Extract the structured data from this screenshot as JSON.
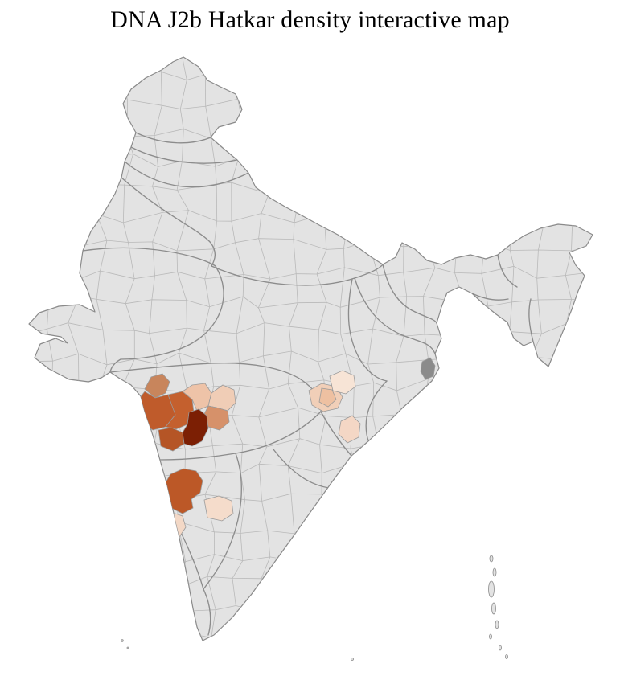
{
  "title": "DNA J2b Hatkar density interactive map",
  "map": {
    "land_fill": "#e3e3e3",
    "sea_background": "#ffffff",
    "district_border_color": "#b9b9b9",
    "state_border_color": "#8c8c8c",
    "outline_color": "#8a8a8a",
    "density_color_scale": [
      "#f7e4d6",
      "#f4d7c5",
      "#eec3a8",
      "#d6916a",
      "#c4602e",
      "#7c1f04"
    ],
    "districts": [
      {
        "id": "d1",
        "color": "#c8855c"
      },
      {
        "id": "d2",
        "color": "#bf5b2b"
      },
      {
        "id": "d3",
        "color": "#c4602e"
      },
      {
        "id": "d4",
        "color": "#b55526"
      },
      {
        "id": "d5",
        "color": "#eec3a8"
      },
      {
        "id": "d6",
        "color": "#f0cdb6"
      },
      {
        "id": "d7",
        "color": "#d6916a"
      },
      {
        "id": "d8",
        "color": "#7c1f04"
      },
      {
        "id": "d9",
        "color": "#bc5827"
      },
      {
        "id": "d10",
        "color": "#f3d8c6"
      },
      {
        "id": "d11",
        "color": "#f5dccb"
      },
      {
        "id": "d12",
        "color": "#f1cfb8"
      },
      {
        "id": "d13",
        "color": "#eec0a1"
      },
      {
        "id": "d14",
        "color": "#f7e4d6"
      },
      {
        "id": "d15",
        "color": "#f4d7c5"
      },
      {
        "id": "d16",
        "color": "#8b8b8b"
      }
    ]
  }
}
